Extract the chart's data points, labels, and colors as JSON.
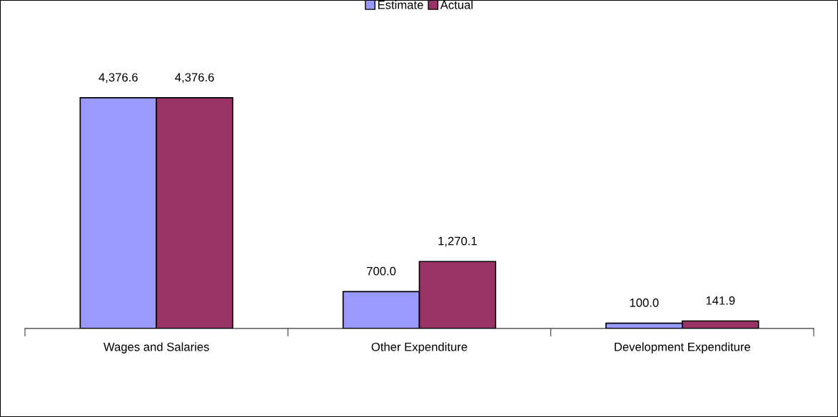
{
  "chart_data": {
    "type": "bar",
    "categories": [
      "Wages and Salaries",
      "Other Expenditure",
      "Development Expenditure"
    ],
    "series": [
      {
        "name": "Estimate",
        "color": "#9999ff",
        "values": [
          4376.6,
          700.0,
          100.0
        ],
        "value_labels": [
          "4,376.6",
          "700.0",
          "100.0"
        ]
      },
      {
        "name": "Actual",
        "color": "#993366",
        "values": [
          4376.6,
          1270.1,
          141.9
        ],
        "value_labels": [
          "4,376.6",
          "1,270.1",
          "141.9"
        ]
      }
    ],
    "legend": "top",
    "grid": false
  }
}
